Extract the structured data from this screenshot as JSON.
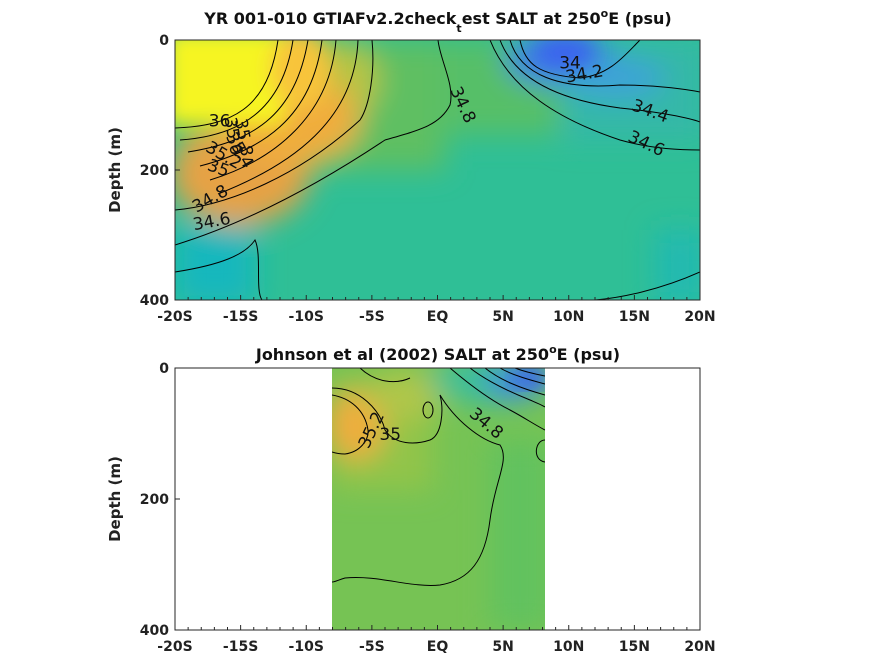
{
  "chart_data": [
    {
      "type": "contour",
      "title": "YR 001-010 GTIAFv2.2check",
      "title_subscript": "t",
      "title_after_subscript": "est SALT at 250",
      "title_superscript": "o",
      "title_end": "E (psu)",
      "ylabel": "Depth (m)",
      "xlabel": "",
      "xlim": [
        -20,
        20
      ],
      "ylim": [
        400,
        0
      ],
      "y_reversed": true,
      "x_ticks": [
        {
          "value": -20,
          "label": "-20S"
        },
        {
          "value": -15,
          "label": "-15S"
        },
        {
          "value": -10,
          "label": "-10S"
        },
        {
          "value": -5,
          "label": "-5S"
        },
        {
          "value": 0,
          "label": "EQ"
        },
        {
          "value": 5,
          "label": "5N"
        },
        {
          "value": 10,
          "label": "10N"
        },
        {
          "value": 15,
          "label": "15N"
        },
        {
          "value": 20,
          "label": "20N"
        }
      ],
      "y_ticks": [
        {
          "value": 0,
          "label": "0"
        },
        {
          "value": 200,
          "label": "200"
        },
        {
          "value": 400,
          "label": "400"
        }
      ],
      "data_extent": [
        -20,
        20
      ],
      "contour_labels": [
        {
          "text": "36",
          "lat": -16.6,
          "depth": 125,
          "angle": 0
        },
        {
          "text": "35.8",
          "lat": -14.8,
          "depth": 150,
          "angle": 80
        },
        {
          "text": "35.6",
          "lat": -15.6,
          "depth": 148,
          "angle": 80
        },
        {
          "text": "35.4",
          "lat": -15.1,
          "depth": 170,
          "angle": 60
        },
        {
          "text": "35.2",
          "lat": -16.3,
          "depth": 178,
          "angle": 30
        },
        {
          "text": "35",
          "lat": -16.7,
          "depth": 198,
          "angle": 20
        },
        {
          "text": "34.8",
          "lat": -17.3,
          "depth": 245,
          "angle": -30
        },
        {
          "text": "34.6",
          "lat": -17.2,
          "depth": 280,
          "angle": -10
        },
        {
          "text": "34.8",
          "lat": 1.9,
          "depth": 100,
          "angle": 65
        },
        {
          "text": "34",
          "lat": 10.1,
          "depth": 36,
          "angle": 0
        },
        {
          "text": "34.2",
          "lat": 11.2,
          "depth": 53,
          "angle": -10
        },
        {
          "text": "34.4",
          "lat": 16.2,
          "depth": 110,
          "angle": 20
        },
        {
          "text": "34.6",
          "lat": 15.9,
          "depth": 160,
          "angle": 25
        }
      ]
    },
    {
      "type": "contour",
      "title": "Johnson et al (2002) SALT at 250",
      "title_superscript": "o",
      "title_end": "E (psu)",
      "ylabel": "Depth (m)",
      "xlabel": "",
      "xlim": [
        -20,
        20
      ],
      "ylim": [
        400,
        0
      ],
      "y_reversed": true,
      "x_ticks": [
        {
          "value": -20,
          "label": "-20S"
        },
        {
          "value": -15,
          "label": "-15S"
        },
        {
          "value": -10,
          "label": "-10S"
        },
        {
          "value": -5,
          "label": "-5S"
        },
        {
          "value": 0,
          "label": "EQ"
        },
        {
          "value": 5,
          "label": "5N"
        },
        {
          "value": 10,
          "label": "10N"
        },
        {
          "value": 15,
          "label": "15N"
        },
        {
          "value": 20,
          "label": "20N"
        }
      ],
      "y_ticks": [
        {
          "value": 0,
          "label": "0"
        },
        {
          "value": 200,
          "label": "200"
        },
        {
          "value": 400,
          "label": "400"
        }
      ],
      "data_extent": [
        -8,
        8.3
      ],
      "contour_labels": [
        {
          "text": "35.2",
          "lat": -5.0,
          "depth": 95,
          "angle": -65
        },
        {
          "text": "35",
          "lat": -3.6,
          "depth": 102,
          "angle": 0
        },
        {
          "text": "34.8",
          "lat": 3.7,
          "depth": 85,
          "angle": 40
        }
      ]
    }
  ],
  "colors": {
    "yellow_high_salinity": "#f5f523",
    "orange": "#f4ab3e",
    "green_mid": "#6fc05a",
    "teal": "#2dbd9a",
    "blue_low_salinity": "#3b73e8",
    "contour_line": "#000000"
  }
}
